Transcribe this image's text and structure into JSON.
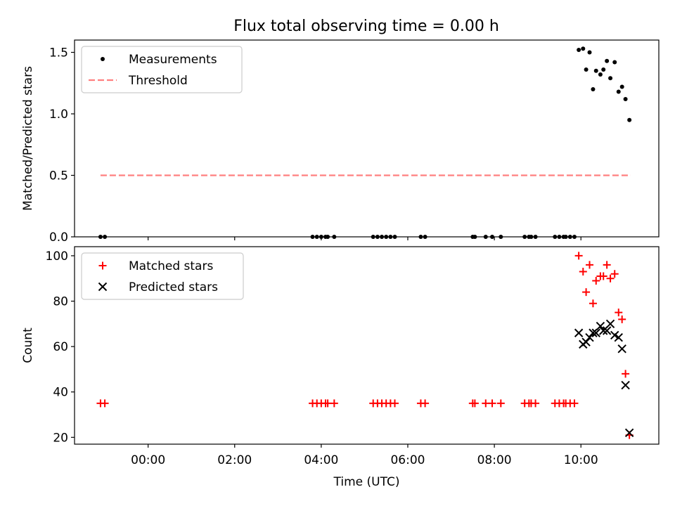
{
  "chart_data": [
    {
      "type": "scatter",
      "title": "Flux total observing time = 0.00 h",
      "xlabel": "",
      "ylabel": "Matched/Predicted stars",
      "x_unit": "hours UTC",
      "xlim": [
        -1.7,
        11.8
      ],
      "ylim": [
        0,
        1.6
      ],
      "yticks": [
        0.0,
        0.5,
        1.0,
        1.5
      ],
      "ytick_labels": [
        "0.0",
        "0.5",
        "1.0",
        "1.5"
      ],
      "legend_position": "top-left",
      "series": [
        {
          "name": "Measurements",
          "kind": "points",
          "color": "#000000",
          "points": [
            [
              -1.1,
              0.0
            ],
            [
              -1.0,
              0.0
            ],
            [
              3.8,
              0.0
            ],
            [
              3.9,
              0.0
            ],
            [
              4.0,
              0.0
            ],
            [
              4.1,
              0.0
            ],
            [
              4.15,
              0.0
            ],
            [
              4.3,
              0.0
            ],
            [
              5.2,
              0.0
            ],
            [
              5.3,
              0.0
            ],
            [
              5.4,
              0.0
            ],
            [
              5.5,
              0.0
            ],
            [
              5.6,
              0.0
            ],
            [
              5.7,
              0.0
            ],
            [
              6.3,
              0.0
            ],
            [
              6.4,
              0.0
            ],
            [
              7.5,
              0.0
            ],
            [
              7.55,
              0.0
            ],
            [
              7.8,
              0.0
            ],
            [
              7.95,
              0.0
            ],
            [
              8.15,
              0.0
            ],
            [
              8.7,
              0.0
            ],
            [
              8.8,
              0.0
            ],
            [
              8.85,
              0.0
            ],
            [
              8.95,
              0.0
            ],
            [
              9.4,
              0.0
            ],
            [
              9.5,
              0.0
            ],
            [
              9.6,
              0.0
            ],
            [
              9.65,
              0.0
            ],
            [
              9.75,
              0.0
            ],
            [
              9.85,
              0.0
            ],
            [
              9.95,
              1.52
            ],
            [
              10.05,
              1.53
            ],
            [
              10.12,
              1.36
            ],
            [
              10.2,
              1.5
            ],
            [
              10.28,
              1.2
            ],
            [
              10.35,
              1.35
            ],
            [
              10.45,
              1.32
            ],
            [
              10.52,
              1.36
            ],
            [
              10.6,
              1.43
            ],
            [
              10.68,
              1.29
            ],
            [
              10.78,
              1.42
            ],
            [
              10.87,
              1.18
            ],
            [
              10.95,
              1.22
            ],
            [
              11.03,
              1.12
            ],
            [
              11.12,
              0.95
            ]
          ]
        },
        {
          "name": "Threshold",
          "kind": "dashed-line",
          "color": "#ff7f7f",
          "points": [
            [
              -1.1,
              0.5
            ],
            [
              11.15,
              0.5
            ]
          ]
        }
      ]
    },
    {
      "type": "scatter",
      "title": "",
      "xlabel": "Time (UTC)",
      "ylabel": "Count",
      "x_unit": "hours UTC",
      "xlim": [
        -1.7,
        11.8
      ],
      "ylim": [
        17,
        104
      ],
      "xticks": [
        0,
        2,
        4,
        6,
        8,
        10
      ],
      "xtick_labels": [
        "00:00",
        "02:00",
        "04:00",
        "06:00",
        "08:00",
        "10:00"
      ],
      "yticks": [
        20,
        40,
        60,
        80,
        100
      ],
      "ytick_labels": [
        "20",
        "40",
        "60",
        "80",
        "100"
      ],
      "legend_position": "top-left",
      "series": [
        {
          "name": "Matched stars",
          "kind": "plus",
          "color": "#ff0000",
          "points": [
            [
              -1.1,
              35
            ],
            [
              -1.0,
              35
            ],
            [
              3.8,
              35
            ],
            [
              3.9,
              35
            ],
            [
              4.0,
              35
            ],
            [
              4.1,
              35
            ],
            [
              4.15,
              35
            ],
            [
              4.3,
              35
            ],
            [
              5.2,
              35
            ],
            [
              5.3,
              35
            ],
            [
              5.4,
              35
            ],
            [
              5.5,
              35
            ],
            [
              5.6,
              35
            ],
            [
              5.7,
              35
            ],
            [
              6.3,
              35
            ],
            [
              6.4,
              35
            ],
            [
              7.5,
              35
            ],
            [
              7.55,
              35
            ],
            [
              7.8,
              35
            ],
            [
              7.95,
              35
            ],
            [
              8.15,
              35
            ],
            [
              8.7,
              35
            ],
            [
              8.8,
              35
            ],
            [
              8.85,
              35
            ],
            [
              8.95,
              35
            ],
            [
              9.4,
              35
            ],
            [
              9.5,
              35
            ],
            [
              9.6,
              35
            ],
            [
              9.65,
              35
            ],
            [
              9.75,
              35
            ],
            [
              9.85,
              35
            ],
            [
              9.95,
              100
            ],
            [
              10.05,
              93
            ],
            [
              10.12,
              84
            ],
            [
              10.2,
              96
            ],
            [
              10.28,
              79
            ],
            [
              10.35,
              89
            ],
            [
              10.45,
              91
            ],
            [
              10.52,
              91
            ],
            [
              10.6,
              96
            ],
            [
              10.68,
              90
            ],
            [
              10.78,
              92
            ],
            [
              10.87,
              75
            ],
            [
              10.95,
              72
            ],
            [
              11.03,
              48
            ],
            [
              11.12,
              21
            ]
          ]
        },
        {
          "name": "Predicted stars",
          "kind": "cross",
          "color": "#000000",
          "points": [
            [
              9.95,
              66
            ],
            [
              10.05,
              61
            ],
            [
              10.12,
              62
            ],
            [
              10.2,
              64
            ],
            [
              10.28,
              66
            ],
            [
              10.35,
              66
            ],
            [
              10.45,
              69
            ],
            [
              10.52,
              67
            ],
            [
              10.6,
              67
            ],
            [
              10.68,
              70
            ],
            [
              10.78,
              65
            ],
            [
              10.87,
              64
            ],
            [
              10.95,
              59
            ],
            [
              11.03,
              43
            ],
            [
              11.12,
              22
            ]
          ]
        }
      ]
    }
  ]
}
